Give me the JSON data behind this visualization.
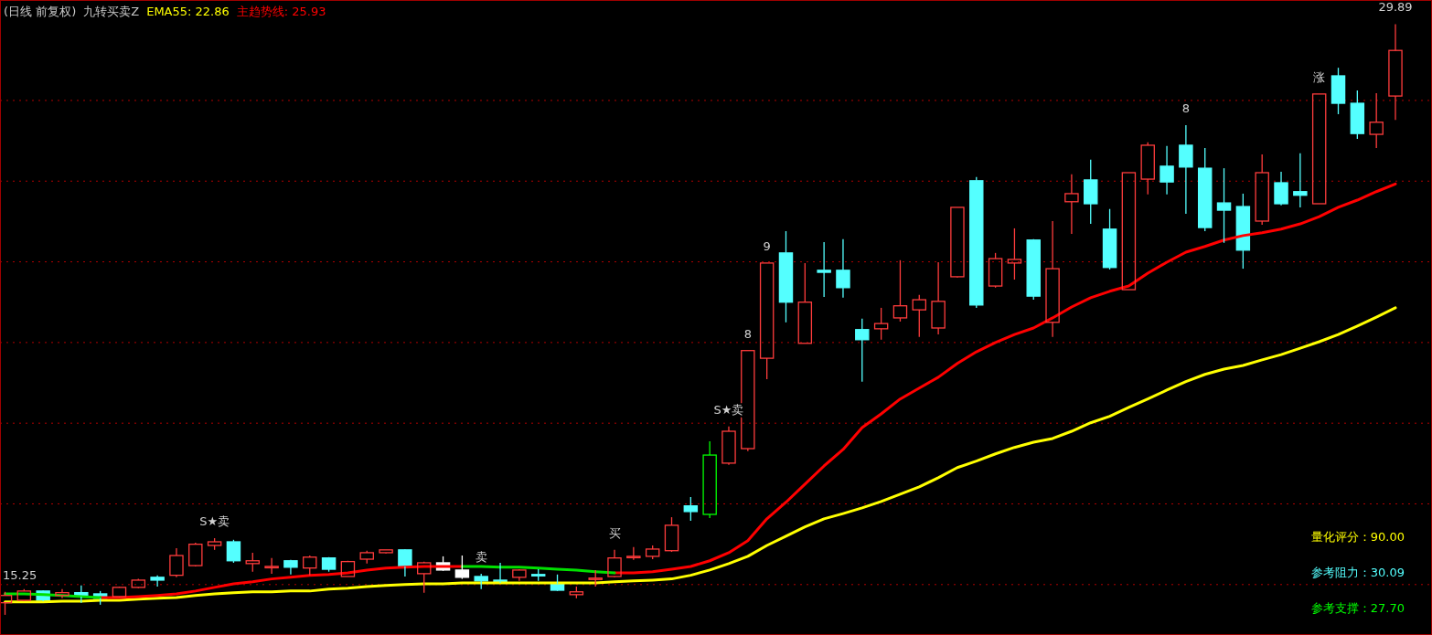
{
  "chart_data": {
    "type": "candlestick",
    "title": "(日线 前复权)",
    "subtitle": "九转买卖Z",
    "categories": [
      null,
      null,
      null,
      null,
      null,
      null,
      null,
      null,
      null,
      null,
      null,
      null,
      null,
      null,
      null,
      null,
      null,
      null,
      null,
      null,
      null,
      null,
      null,
      null,
      null,
      null,
      null,
      null,
      null,
      null,
      null,
      null,
      null,
      null,
      null,
      null,
      null,
      null,
      null,
      null,
      null,
      null,
      null,
      null,
      null,
      null,
      null,
      null,
      null,
      null,
      null,
      null,
      null,
      null,
      null,
      null,
      null,
      null,
      null,
      null,
      null,
      null,
      null,
      null,
      null,
      null,
      null,
      null,
      null,
      null,
      null,
      null,
      null,
      null
    ],
    "ohlc": [
      [
        15.55,
        15.82,
        15.25,
        15.73
      ],
      [
        15.61,
        15.89,
        15.59,
        15.84
      ],
      [
        15.84,
        15.86,
        15.59,
        15.61
      ],
      [
        15.73,
        15.89,
        15.66,
        15.8
      ],
      [
        15.8,
        15.98,
        15.55,
        15.7
      ],
      [
        15.77,
        15.84,
        15.5,
        15.66
      ],
      [
        15.7,
        15.95,
        15.68,
        15.93
      ],
      [
        15.93,
        16.14,
        15.91,
        16.11
      ],
      [
        16.18,
        16.23,
        15.95,
        16.11
      ],
      [
        16.23,
        16.9,
        16.18,
        16.72
      ],
      [
        16.47,
        17.04,
        16.45,
        17.0
      ],
      [
        16.97,
        17.15,
        16.86,
        17.06
      ],
      [
        17.06,
        17.11,
        16.54,
        16.59
      ],
      [
        16.52,
        16.79,
        16.32,
        16.59
      ],
      [
        16.44,
        16.66,
        16.27,
        16.45
      ],
      [
        16.59,
        16.61,
        16.25,
        16.43
      ],
      [
        16.41,
        16.72,
        16.23,
        16.68
      ],
      [
        16.66,
        16.68,
        16.32,
        16.38
      ],
      [
        16.2,
        16.59,
        16.2,
        16.57
      ],
      [
        16.63,
        16.84,
        16.52,
        16.79
      ],
      [
        16.79,
        16.86,
        16.77,
        16.86
      ],
      [
        16.86,
        16.88,
        16.2,
        16.45
      ],
      [
        16.27,
        16.57,
        15.8,
        16.54
      ],
      [
        16.54,
        16.7,
        16.34,
        16.36
      ],
      [
        16.36,
        16.72,
        16.14,
        16.18
      ],
      [
        16.2,
        16.27,
        15.89,
        16.09
      ],
      [
        16.11,
        16.54,
        16.04,
        16.07
      ],
      [
        16.18,
        16.38,
        16.09,
        16.36
      ],
      [
        16.25,
        16.38,
        16.09,
        16.24
      ],
      [
        16.02,
        16.25,
        15.84,
        15.86
      ],
      [
        15.75,
        15.95,
        15.66,
        15.82
      ],
      [
        16.14,
        16.36,
        15.95,
        16.16
      ],
      [
        16.2,
        16.86,
        16.18,
        16.66
      ],
      [
        16.69,
        16.93,
        16.61,
        16.7
      ],
      [
        16.7,
        16.97,
        16.63,
        16.88
      ],
      [
        16.84,
        17.67,
        16.81,
        17.47
      ],
      [
        17.95,
        18.17,
        17.58,
        17.81
      ],
      [
        17.74,
        19.55,
        17.65,
        19.21
      ],
      [
        19.01,
        19.92,
        18.97,
        19.8
      ],
      [
        19.37,
        21.8,
        19.31,
        21.8
      ],
      [
        21.61,
        23.97,
        21.09,
        23.97
      ],
      [
        24.22,
        24.76,
        22.5,
        23.0
      ],
      [
        21.98,
        23.97,
        21.98,
        23.0
      ],
      [
        23.79,
        24.49,
        23.13,
        23.74
      ],
      [
        23.79,
        24.56,
        23.11,
        23.36
      ],
      [
        22.32,
        22.59,
        21.03,
        22.07
      ],
      [
        22.34,
        22.86,
        22.07,
        22.47
      ],
      [
        22.61,
        24.04,
        22.52,
        22.91
      ],
      [
        22.81,
        23.18,
        22.14,
        23.06
      ],
      [
        22.36,
        23.99,
        22.2,
        23.02
      ],
      [
        23.63,
        25.35,
        23.61,
        25.35
      ],
      [
        26.01,
        26.1,
        22.86,
        22.93
      ],
      [
        23.4,
        24.22,
        23.36,
        24.08
      ],
      [
        23.97,
        24.83,
        23.56,
        24.06
      ],
      [
        24.54,
        24.56,
        23.06,
        23.15
      ],
      [
        22.5,
        25.01,
        22.14,
        23.83
      ],
      [
        25.49,
        26.17,
        24.69,
        25.69
      ],
      [
        26.03,
        26.53,
        24.94,
        25.44
      ],
      [
        24.81,
        25.31,
        23.81,
        23.86
      ],
      [
        23.31,
        26.21,
        23.31,
        26.21
      ],
      [
        26.05,
        26.96,
        25.67,
        26.89
      ],
      [
        26.37,
        26.87,
        25.67,
        25.98
      ],
      [
        26.89,
        27.39,
        25.19,
        26.35
      ],
      [
        26.32,
        26.82,
        24.76,
        24.85
      ],
      [
        25.46,
        26.32,
        24.47,
        25.28
      ],
      [
        25.37,
        25.69,
        23.83,
        24.29
      ],
      [
        25.01,
        26.66,
        24.92,
        26.21
      ],
      [
        25.96,
        26.23,
        25.4,
        25.44
      ],
      [
        25.74,
        26.69,
        25.35,
        25.65
      ],
      [
        25.44,
        28.16,
        25.44,
        28.16
      ],
      [
        28.61,
        28.81,
        27.66,
        27.93
      ],
      [
        27.93,
        28.25,
        27.05,
        27.18
      ],
      [
        27.16,
        28.18,
        26.82,
        27.46
      ],
      [
        28.11,
        29.89,
        27.52,
        29.24
      ]
    ],
    "colors": [
      "#ff3c3c",
      "#ff3c3c",
      "#54ffff",
      "#ff3c3c",
      "#54ffff",
      "#54ffff",
      "#ff3c3c",
      "#ff3c3c",
      "#54ffff",
      "#ff3c3c",
      "#ff3c3c",
      "#ff3c3c",
      "#54ffff",
      "#ff3c3c",
      "#ff3c3c",
      "#54ffff",
      "#ff3c3c",
      "#54ffff",
      "#ff3c3c",
      "#ff3c3c",
      "#ff3c3c",
      "#54ffff",
      "#ff3c3c",
      "#ffffff",
      "#ffffff",
      "#54ffff",
      "#54ffff",
      "#ff3c3c",
      "#54ffff",
      "#54ffff",
      "#ff3c3c",
      "#ff3c3c",
      "#ff3c3c",
      "#ff3c3c",
      "#ff3c3c",
      "#ff3c3c",
      "#54ffff",
      "#00ff00",
      "#ff3c3c",
      "#ff3c3c",
      "#ff3c3c",
      "#54ffff",
      "#ff3c3c",
      "#54ffff",
      "#54ffff",
      "#54ffff",
      "#ff3c3c",
      "#ff3c3c",
      "#ff3c3c",
      "#ff3c3c",
      "#ff3c3c",
      "#54ffff",
      "#ff3c3c",
      "#ff3c3c",
      "#54ffff",
      "#ff3c3c",
      "#ff3c3c",
      "#54ffff",
      "#54ffff",
      "#ff3c3c",
      "#ff3c3c",
      "#54ffff",
      "#54ffff",
      "#54ffff",
      "#54ffff",
      "#54ffff",
      "#ff3c3c",
      "#54ffff",
      "#54ffff",
      "#ff3c3c",
      "#54ffff",
      "#54ffff",
      "#ff3c3c",
      "#ff3c3c"
    ],
    "series": [
      {
        "name": "EMA55: 22.86",
        "type": "line",
        "color": "#ffff00",
        "values": [
          15.57,
          15.57,
          15.57,
          15.59,
          15.59,
          15.61,
          15.61,
          15.64,
          15.66,
          15.68,
          15.73,
          15.77,
          15.8,
          15.82,
          15.82,
          15.84,
          15.84,
          15.89,
          15.91,
          15.95,
          15.98,
          16.0,
          16.02,
          16.02,
          16.04,
          16.04,
          16.04,
          16.04,
          16.04,
          16.04,
          16.04,
          16.04,
          16.07,
          16.09,
          16.11,
          16.14,
          16.23,
          16.36,
          16.52,
          16.7,
          16.97,
          17.2,
          17.43,
          17.63,
          17.76,
          17.9,
          18.06,
          18.24,
          18.42,
          18.65,
          18.9,
          19.06,
          19.24,
          19.4,
          19.53,
          19.62,
          19.8,
          20.01,
          20.17,
          20.39,
          20.6,
          20.82,
          21.03,
          21.21,
          21.34,
          21.43,
          21.57,
          21.7,
          21.86,
          22.02,
          22.2,
          22.41,
          22.63,
          22.86
        ]
      },
      {
        "name": "主趋势线: 25.93",
        "type": "line",
        "color": "#ff0000",
        "values": [
          null,
          null,
          null,
          null,
          null,
          15.68,
          15.68,
          15.7,
          15.73,
          15.77,
          15.84,
          15.93,
          16.02,
          16.07,
          16.14,
          16.18,
          16.23,
          16.25,
          16.29,
          16.36,
          16.41,
          16.43,
          16.45,
          16.45,
          16.45,
          null,
          null,
          null,
          null,
          null,
          null,
          null,
          16.29,
          16.29,
          16.32,
          16.38,
          16.45,
          16.59,
          16.79,
          17.09,
          17.63,
          18.04,
          18.49,
          18.94,
          19.35,
          19.89,
          20.23,
          20.6,
          20.87,
          21.14,
          21.48,
          21.77,
          22.0,
          22.2,
          22.36,
          22.61,
          22.88,
          23.11,
          23.27,
          23.4,
          23.72,
          23.99,
          24.24,
          24.38,
          24.54,
          24.65,
          24.72,
          24.81,
          24.94,
          25.12,
          25.35,
          25.53,
          25.74,
          25.93
        ]
      },
      {
        "type": "line",
        "color": "#00e000",
        "values": [
          15.77,
          15.77,
          15.75,
          15.73,
          15.7,
          15.68,
          null,
          null,
          null,
          null,
          null,
          null,
          null,
          null,
          null,
          null,
          null,
          null,
          null,
          null,
          null,
          null,
          null,
          null,
          16.45,
          16.45,
          16.43,
          16.43,
          16.41,
          16.38,
          16.36,
          16.32,
          16.29,
          null,
          null,
          null,
          null,
          null,
          null,
          null,
          null,
          null,
          null,
          null,
          null,
          null,
          null,
          null,
          null,
          null,
          null,
          null,
          null,
          null,
          null,
          null,
          null,
          null,
          null,
          null,
          null,
          null,
          null,
          null,
          null,
          null,
          null,
          null,
          null,
          null,
          null,
          null,
          null,
          null
        ]
      }
    ],
    "value_labels": [
      "15.25",
      null,
      null,
      null,
      null,
      null,
      null,
      null,
      null,
      null,
      null,
      "S★卖",
      null,
      null,
      null,
      null,
      null,
      null,
      null,
      null,
      null,
      null,
      null,
      null,
      null,
      "卖",
      null,
      null,
      null,
      null,
      null,
      null,
      "买",
      null,
      null,
      null,
      null,
      null,
      "S★卖",
      "8",
      "9",
      null,
      null,
      null,
      null,
      null,
      null,
      null,
      null,
      null,
      null,
      null,
      null,
      null,
      null,
      null,
      null,
      null,
      null,
      null,
      null,
      null,
      "8",
      null,
      null,
      null,
      null,
      null,
      null,
      "涨",
      null,
      null,
      null,
      "29.89"
    ],
    "annotations": [
      "量化评分：90.00",
      "参考阻力：30.09",
      "参考支撑：27.70"
    ],
    "ylim": [
      14.75,
      30.49
    ],
    "yticks": [
      {
        "value": 16,
        "label": null
      },
      {
        "value": 18,
        "label": null
      },
      {
        "value": 20,
        "label": null
      },
      {
        "value": 22,
        "label": null
      },
      {
        "value": 24,
        "label": null
      },
      {
        "value": 26,
        "label": null
      },
      {
        "value": 28,
        "label": null
      }
    ],
    "grid": "y",
    "legend": "top left"
  }
}
